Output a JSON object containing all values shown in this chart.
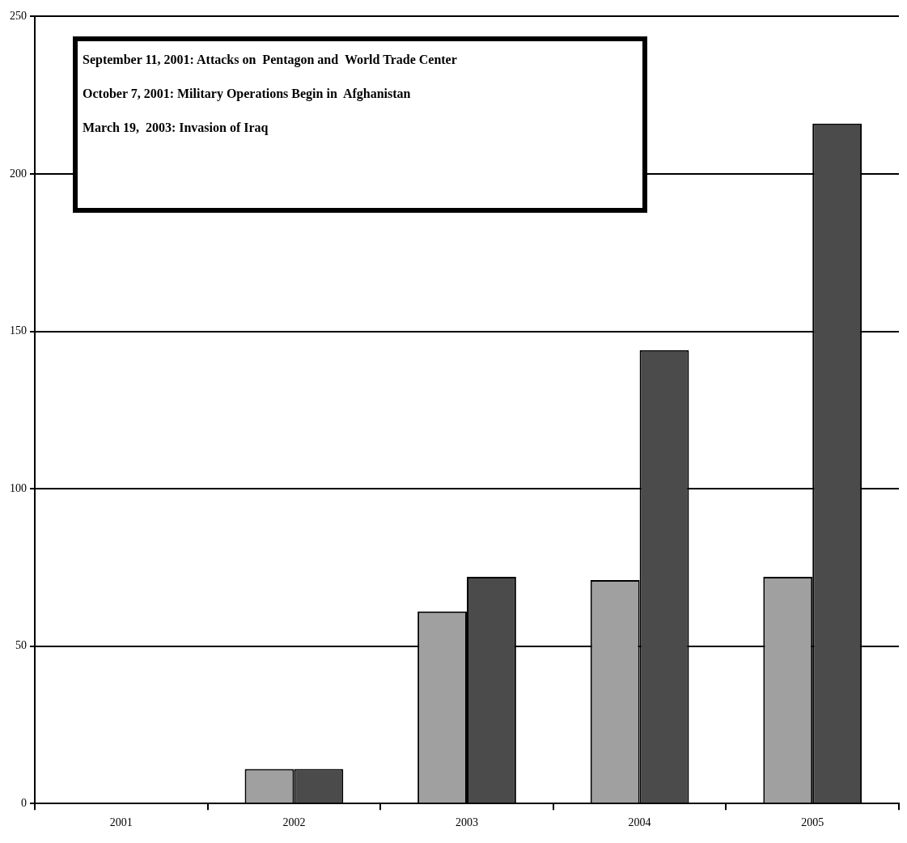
{
  "chart_data": {
    "type": "bar",
    "categories": [
      "2001",
      "2002",
      "2003",
      "2004",
      "2005"
    ],
    "series": [
      {
        "color": "#a0a0a0",
        "values": [
          0,
          11,
          61,
          71,
          72
        ]
      },
      {
        "color": "#4b4b4b",
        "values": [
          0,
          11,
          72,
          144,
          216
        ]
      }
    ],
    "ylim": [
      0,
      250
    ],
    "yticks": [
      0,
      50,
      100,
      150,
      200,
      250
    ],
    "grid": "y",
    "legend": false,
    "annotations": [
      "September 11, 2001: Attacks on  Pentagon and  World Trade Center",
      "October 7, 2001: Military Operations Begin in  Afghanistan",
      "March 19,  2003: Invasion of Iraq"
    ]
  }
}
